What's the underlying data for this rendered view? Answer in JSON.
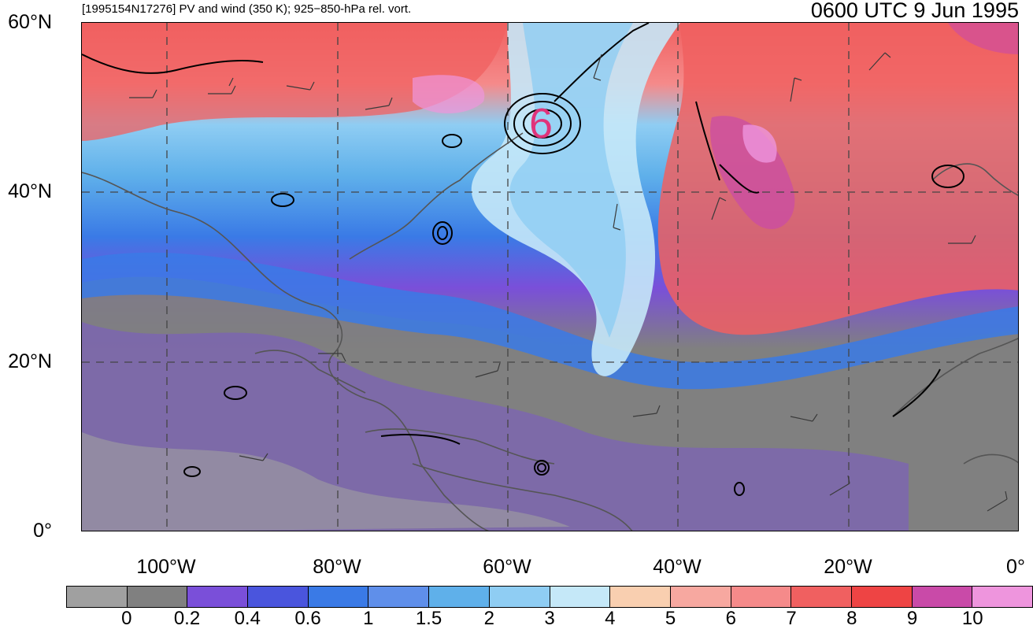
{
  "header": {
    "left_title": "[1995154N17276] PV and wind (350 K); 925−850-hPa rel. vort.",
    "right_title": "0600 UTC 9 Jun 1995"
  },
  "axes": {
    "lat_labels": [
      "60°N",
      "40°N",
      "20°N",
      "0°"
    ],
    "lon_labels": [
      "100°W",
      "80°W",
      "60°W",
      "40°W",
      "20°W",
      "0°"
    ]
  },
  "colorbar": {
    "labels": [
      "0",
      "0.2",
      "0.4",
      "0.6",
      "1",
      "1.5",
      "2",
      "3",
      "4",
      "5",
      "6",
      "7",
      "8",
      "9",
      "10"
    ],
    "colors": [
      "#a0a0a0",
      "#808080",
      "#7a4fd9",
      "#4a55dd",
      "#3a7ae6",
      "#5f8fea",
      "#5fb0ea",
      "#8fcdf3",
      "#c5e8f8",
      "#f9cfb0",
      "#f7a8a0",
      "#f58a8a",
      "#f06060",
      "#ee4444",
      "#c94aa8",
      "#ee95dd"
    ]
  },
  "map": {
    "storm_marker": "6",
    "marker_color": "#e0337a",
    "colors": {
      "land_outline": "#555555",
      "contour": "#000000",
      "grid": "#444444"
    }
  }
}
